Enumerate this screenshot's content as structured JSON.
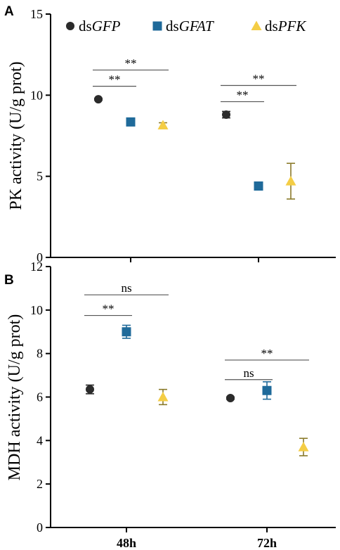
{
  "legend": [
    {
      "prefix": "ds",
      "gene": "GFP",
      "color": "#2b2b2b",
      "marker": "circle"
    },
    {
      "prefix": "ds",
      "gene": "GFAT",
      "color": "#1f6a9a",
      "marker": "square"
    },
    {
      "prefix": "ds",
      "gene": "PFK",
      "color": "#f4cd45",
      "marker": "triangle",
      "errcolor": "#8a7a2a"
    }
  ],
  "chart_data": [
    {
      "type": "scatter",
      "panel": "A",
      "ylabel": "PK activity (U/g prot)",
      "ylim": [
        0,
        15
      ],
      "yticks": [
        "0",
        "5",
        "10",
        "15"
      ],
      "yticks_values": [
        0,
        5,
        10,
        15
      ],
      "categories": [
        "48h",
        "72h"
      ],
      "show_category_labels": false,
      "series": [
        {
          "name": "dsGFP",
          "values": [
            9.75,
            8.8
          ],
          "errors": [
            0.05,
            0.2
          ]
        },
        {
          "name": "dsGFAT",
          "values": [
            8.35,
            4.4
          ],
          "errors": [
            0.15,
            0.05
          ]
        },
        {
          "name": "dsPFK",
          "values": [
            8.15,
            4.7
          ],
          "errors": [
            0.15,
            1.1
          ]
        }
      ],
      "significance": [
        {
          "category": 0,
          "from": 0,
          "to": 1,
          "label": "**",
          "level": 10.55
        },
        {
          "category": 0,
          "from": 0,
          "to": 2,
          "label": "**",
          "level": 11.55
        },
        {
          "category": 1,
          "from": 0,
          "to": 1,
          "label": "**",
          "level": 9.6
        },
        {
          "category": 1,
          "from": 0,
          "to": 2,
          "label": "**",
          "level": 10.6
        }
      ]
    },
    {
      "type": "scatter",
      "panel": "B",
      "ylabel": "MDH activity (U/g prot)",
      "ylim": [
        0,
        12
      ],
      "yticks": [
        "0",
        "2",
        "4",
        "6",
        "8",
        "10",
        "12"
      ],
      "yticks_values": [
        0,
        2,
        4,
        6,
        8,
        10,
        12
      ],
      "categories": [
        "48h",
        "72h"
      ],
      "show_category_labels": true,
      "series": [
        {
          "name": "dsGFP",
          "values": [
            6.35,
            5.95
          ],
          "errors": [
            0.2,
            0.05
          ]
        },
        {
          "name": "dsGFAT",
          "values": [
            9.0,
            6.3
          ],
          "errors": [
            0.3,
            0.4
          ]
        },
        {
          "name": "dsPFK",
          "values": [
            6.0,
            3.7
          ],
          "errors": [
            0.35,
            0.4
          ]
        }
      ],
      "significance": [
        {
          "category": 0,
          "from": 0,
          "to": 1,
          "label": "**",
          "level": 9.75
        },
        {
          "category": 0,
          "from": 0,
          "to": 2,
          "label": "ns",
          "level": 10.7
        },
        {
          "category": 1,
          "from": 0,
          "to": 1,
          "label": "ns",
          "level": 6.8
        },
        {
          "category": 1,
          "from": 0,
          "to": 2,
          "label": "**",
          "level": 7.7
        }
      ]
    }
  ]
}
